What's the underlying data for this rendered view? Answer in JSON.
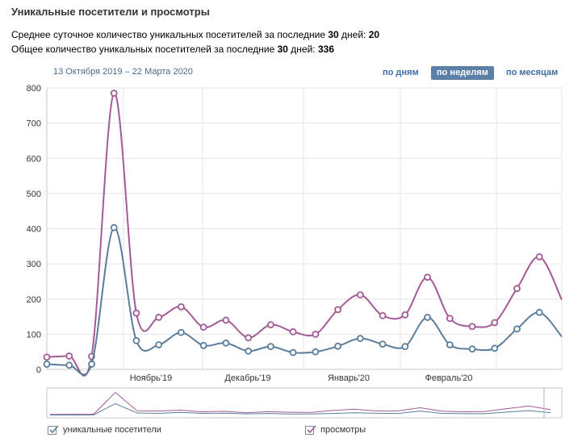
{
  "header": {
    "title": "Уникальные посетители и просмотры",
    "stat1_text": "Среднее суточное количество уникальных посетителей за последние ",
    "stat1_days": "30",
    "stat1_mid": " дней: ",
    "stat1_value": "20",
    "stat2_text": "Общее количество уникальных посетителей за последние ",
    "stat2_days": "30",
    "stat2_mid": " дней: ",
    "stat2_value": "336"
  },
  "date_range": "13 Октября 2019 – 22 Марта 2020",
  "tabs": [
    {
      "label": "по дням",
      "active": false
    },
    {
      "label": "по неделям",
      "active": true
    },
    {
      "label": "по месяцам",
      "active": false
    }
  ],
  "legend": {
    "visitors_label": "уникальные посетители",
    "views_label": "просмотры"
  },
  "colors": {
    "visitors": "#5b7d9c",
    "views": "#a35b96",
    "grid": "#e6e6e6",
    "tab_active_bg": "#5b7fa6"
  },
  "chart_data": {
    "type": "line",
    "x_tick_labels": [
      "Ноябрь'19",
      "Декабрь'19",
      "Январь'20",
      "Февраль'20"
    ],
    "y_ticks": [
      0,
      100,
      200,
      300,
      400,
      500,
      600,
      700,
      800
    ],
    "ylim": [
      0,
      800
    ],
    "grid": true,
    "legend_position": "bottom",
    "series": [
      {
        "name": "уникальные посетители",
        "values": [
          15,
          12,
          15,
          403,
          82,
          70,
          105,
          68,
          75,
          52,
          65,
          48,
          50,
          66,
          88,
          72,
          65,
          148,
          70,
          58,
          60,
          115,
          162,
          93
        ]
      },
      {
        "name": "просмотры",
        "values": [
          35,
          38,
          37,
          785,
          160,
          148,
          178,
          120,
          140,
          90,
          127,
          107,
          100,
          170,
          212,
          153,
          155,
          262,
          145,
          122,
          133,
          230,
          320,
          198
        ]
      }
    ]
  }
}
